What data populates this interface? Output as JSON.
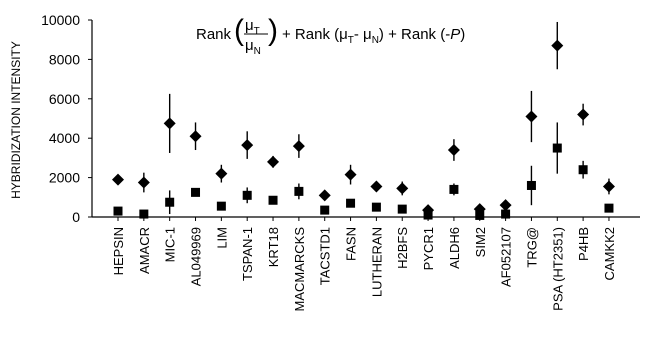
{
  "chart_data": {
    "type": "scatter",
    "ylabel": "HYBRIDIZATION INTENSITY",
    "ylim": [
      0,
      10000
    ],
    "yticks": [
      "0",
      "2000",
      "4000",
      "6000",
      "8000",
      "10000"
    ],
    "formula": {
      "rank1": "Rank",
      "mu_t": "μ",
      "sub_t": "T",
      "mu_n": "μ",
      "sub_n": "N",
      "plus1": "+ Rank",
      "open1": "(μ",
      "sub_t2": "T",
      "minus": "- μ",
      "sub_n2": "N",
      "close1": ")",
      "plus2": "+ Rank",
      "neg_p_open": "(-",
      "p": "P",
      "neg_p_close": ")"
    },
    "categories": [
      "HEPSIN",
      "AMACR",
      "MIC-1",
      "AL049969",
      "LIM",
      "TSPAN-1",
      "KRT18",
      "MACMARCKS",
      "TACSTD1",
      "FASN",
      "LUTHERAN",
      "H2BFS",
      "PYCR1",
      "ALDH6",
      "SIM2",
      "AF052107",
      "TRG@",
      "PSA (HT2351)",
      "P4HB",
      "CAMKK2"
    ],
    "series": [
      {
        "marker": "diamond",
        "values": [
          1900,
          1750,
          4750,
          4100,
          2200,
          3650,
          2800,
          3600,
          1100,
          2150,
          1550,
          1450,
          350,
          3400,
          400,
          600,
          5100,
          8700,
          5200,
          1550
        ],
        "errors": [
          250,
          500,
          1500,
          700,
          450,
          700,
          300,
          600,
          200,
          500,
          150,
          350,
          150,
          550,
          100,
          100,
          1300,
          1200,
          550,
          400
        ]
      },
      {
        "marker": "square",
        "values": [
          300,
          150,
          750,
          1250,
          550,
          1100,
          850,
          1300,
          350,
          700,
          500,
          400,
          100,
          1400,
          80,
          150,
          1600,
          3500,
          2400,
          450
        ],
        "errors": [
          100,
          100,
          600,
          200,
          100,
          400,
          200,
          400,
          100,
          150,
          100,
          100,
          100,
          300,
          50,
          100,
          1000,
          1300,
          450,
          100
        ]
      }
    ]
  }
}
